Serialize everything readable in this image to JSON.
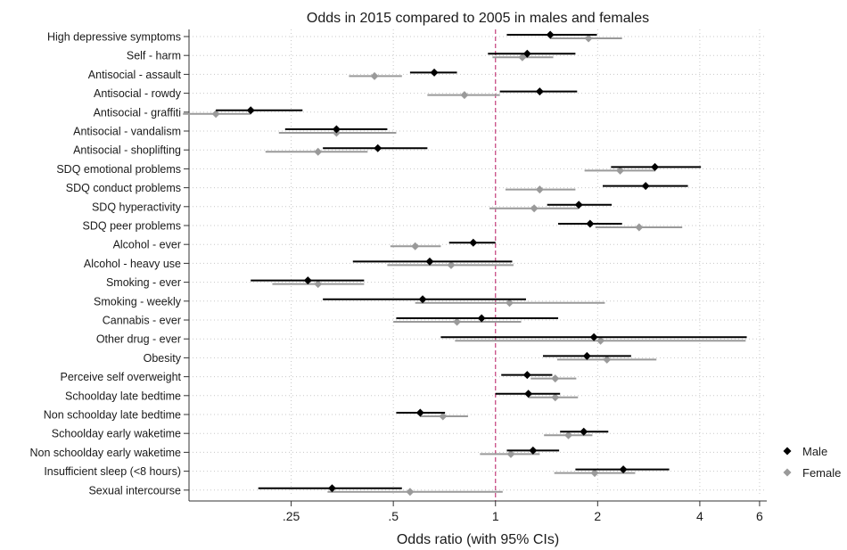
{
  "chart_data": {
    "type": "forest",
    "title": "Odds in 2015 compared to 2005 in males and females",
    "xlabel": "Odds ratio (with 95% CIs)",
    "ylabel": "",
    "x_scale": "log",
    "xlim": [
      0.125,
      6.3
    ],
    "x_ticks": [
      {
        "value": 0.25,
        "label": ".25"
      },
      {
        "value": 0.5,
        "label": ".5"
      },
      {
        "value": 1,
        "label": "1"
      },
      {
        "value": 2,
        "label": "2"
      },
      {
        "value": 4,
        "label": "4"
      },
      {
        "value": 6,
        "label": "6"
      }
    ],
    "reference_line": 1,
    "reference_line_color": "#c43c7a",
    "categories": [
      "High depressive symptoms",
      "Self - harm",
      "Antisocial - assault",
      "Antisocial - rowdy",
      "Antisocial - graffiti",
      "Antisocial - vandalism",
      "Antisocial - shoplifting",
      "SDQ emotional problems",
      "SDQ conduct problems",
      "SDQ hyperactivity",
      "SDQ peer problems",
      "Alcohol - ever",
      "Alcohol - heavy use",
      "Smoking - ever",
      "Smoking - weekly",
      "Cannabis - ever",
      "Other drug - ever",
      "Obesity",
      "Perceive self overweight",
      "Schoolday late bedtime",
      "Non schoolday late bedtime",
      "Schoolday early waketime",
      "Non schoolday early waketime",
      "Insufficient sleep (<8 hours)",
      "Sexual intercourse"
    ],
    "series": [
      {
        "name": "Male",
        "color": "#000000",
        "marker": "diamond",
        "points": [
          {
            "or": 1.45,
            "lo": 1.08,
            "hi": 1.99
          },
          {
            "or": 1.24,
            "lo": 0.95,
            "hi": 1.72
          },
          {
            "or": 0.66,
            "lo": 0.56,
            "hi": 0.77
          },
          {
            "or": 1.35,
            "lo": 1.03,
            "hi": 1.74
          },
          {
            "or": 0.19,
            "lo": 0.15,
            "hi": 0.27
          },
          {
            "or": 0.34,
            "lo": 0.24,
            "hi": 0.48
          },
          {
            "or": 0.45,
            "lo": 0.31,
            "hi": 0.63
          },
          {
            "or": 2.95,
            "lo": 2.19,
            "hi": 4.03
          },
          {
            "or": 2.77,
            "lo": 2.07,
            "hi": 3.69
          },
          {
            "or": 1.76,
            "lo": 1.42,
            "hi": 2.2
          },
          {
            "or": 1.9,
            "lo": 1.53,
            "hi": 2.36
          },
          {
            "or": 0.86,
            "lo": 0.73,
            "hi": 1.0
          },
          {
            "or": 0.64,
            "lo": 0.38,
            "hi": 1.12
          },
          {
            "or": 0.28,
            "lo": 0.19,
            "hi": 0.41
          },
          {
            "or": 0.61,
            "lo": 0.31,
            "hi": 1.23
          },
          {
            "or": 0.91,
            "lo": 0.51,
            "hi": 1.53
          },
          {
            "or": 1.95,
            "lo": 0.69,
            "hi": 5.5
          },
          {
            "or": 1.86,
            "lo": 1.38,
            "hi": 2.51
          },
          {
            "or": 1.24,
            "lo": 1.04,
            "hi": 1.47
          },
          {
            "or": 1.25,
            "lo": 1.0,
            "hi": 1.55
          },
          {
            "or": 0.6,
            "lo": 0.51,
            "hi": 0.71
          },
          {
            "or": 1.82,
            "lo": 1.55,
            "hi": 2.15
          },
          {
            "or": 1.29,
            "lo": 1.08,
            "hi": 1.54
          },
          {
            "or": 2.38,
            "lo": 1.72,
            "hi": 3.25
          },
          {
            "or": 0.33,
            "lo": 0.2,
            "hi": 0.53
          }
        ]
      },
      {
        "name": "Female",
        "color": "#9a9a9a",
        "marker": "diamond",
        "points": [
          {
            "or": 1.88,
            "lo": 1.45,
            "hi": 2.36
          },
          {
            "or": 1.2,
            "lo": 0.98,
            "hi": 1.48
          },
          {
            "or": 0.44,
            "lo": 0.37,
            "hi": 0.53
          },
          {
            "or": 0.81,
            "lo": 0.63,
            "hi": 1.03
          },
          {
            "or": 0.15,
            "lo": 0.12,
            "hi": 0.19
          },
          {
            "or": 0.34,
            "lo": 0.23,
            "hi": 0.51
          },
          {
            "or": 0.3,
            "lo": 0.21,
            "hi": 0.42
          },
          {
            "or": 2.33,
            "lo": 1.83,
            "hi": 2.96
          },
          {
            "or": 1.35,
            "lo": 1.07,
            "hi": 1.72
          },
          {
            "or": 1.3,
            "lo": 0.96,
            "hi": 1.76
          },
          {
            "or": 2.65,
            "lo": 1.97,
            "hi": 3.55
          },
          {
            "or": 0.58,
            "lo": 0.49,
            "hi": 0.69
          },
          {
            "or": 0.74,
            "lo": 0.48,
            "hi": 1.13
          },
          {
            "or": 0.3,
            "lo": 0.22,
            "hi": 0.41
          },
          {
            "or": 1.1,
            "lo": 0.58,
            "hi": 2.1
          },
          {
            "or": 0.77,
            "lo": 0.5,
            "hi": 1.19
          },
          {
            "or": 2.04,
            "lo": 0.76,
            "hi": 5.46
          },
          {
            "or": 2.13,
            "lo": 1.52,
            "hi": 2.98
          },
          {
            "or": 1.5,
            "lo": 1.27,
            "hi": 1.73
          },
          {
            "or": 1.5,
            "lo": 1.25,
            "hi": 1.75
          },
          {
            "or": 0.7,
            "lo": 0.6,
            "hi": 0.83
          },
          {
            "or": 1.64,
            "lo": 1.39,
            "hi": 1.93
          },
          {
            "or": 1.11,
            "lo": 0.9,
            "hi": 1.35
          },
          {
            "or": 1.96,
            "lo": 1.49,
            "hi": 2.58
          },
          {
            "or": 0.56,
            "lo": 0.32,
            "hi": 1.05
          }
        ]
      }
    ],
    "grid": true,
    "legend": "right-bottom"
  }
}
